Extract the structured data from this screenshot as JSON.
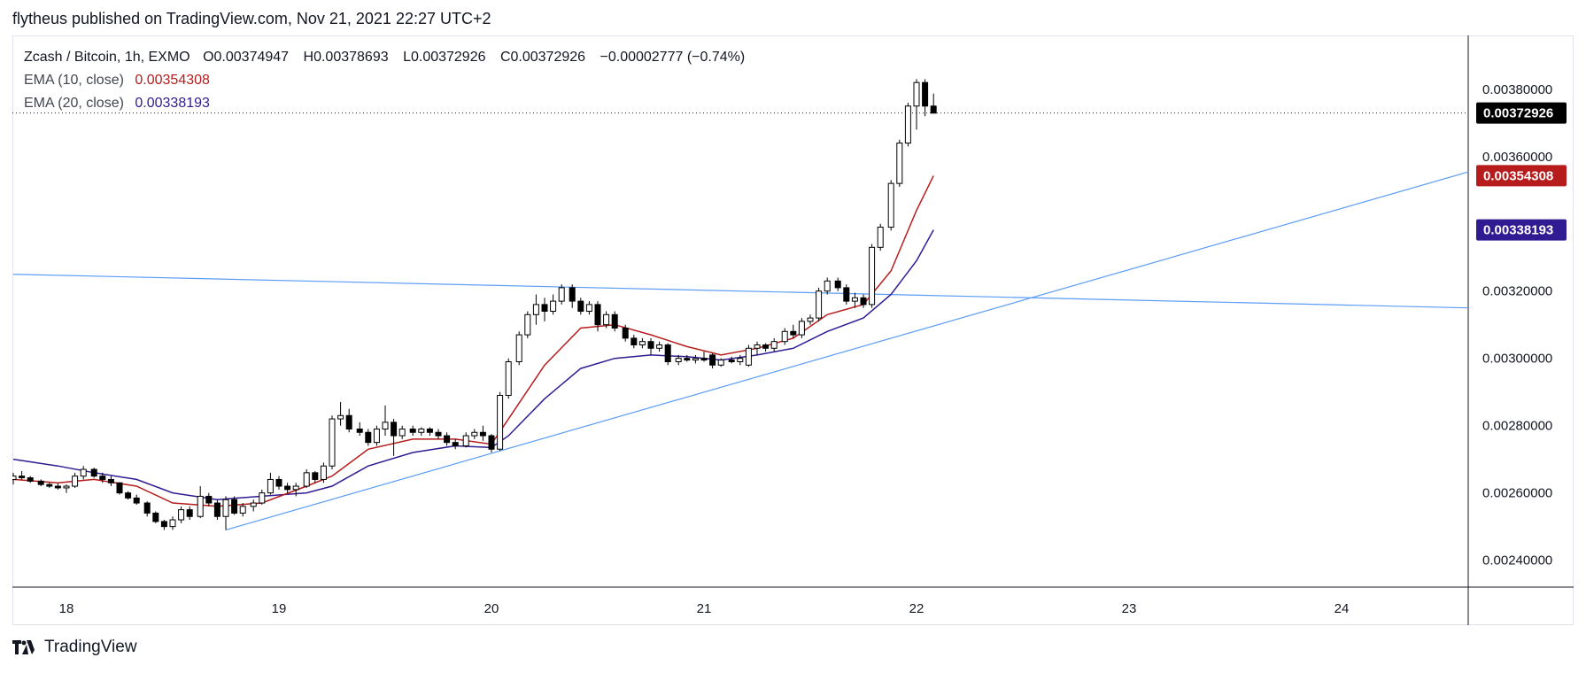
{
  "header": {
    "publish_line": "flytheus published on TradingView.com, Nov 21, 2021 22:27 UTC+2"
  },
  "legend": {
    "title": "Zcash / Bitcoin, 1h, EXMO",
    "ohlc": [
      {
        "key": "O",
        "value": "0.00374947"
      },
      {
        "key": "H",
        "value": "0.00378693"
      },
      {
        "key": "L",
        "value": "0.00372926"
      },
      {
        "key": "C",
        "value": "0.00372926"
      }
    ],
    "change": "−0.00002777 (−0.74%)",
    "indicators": [
      {
        "name": "EMA (10, close)",
        "value": "0.00354308",
        "color": "#b71c1c"
      },
      {
        "name": "EMA (20, close)",
        "value": "0.00338193",
        "color": "#311b92"
      }
    ]
  },
  "footer": {
    "logo_text": "TradingView"
  },
  "colors": {
    "up_candle_fill": "#ffffff",
    "down_candle_fill": "#000000",
    "candle_stroke": "#000000",
    "ema10": "#b71c1c",
    "ema20": "#311b92",
    "trendline": "#5b9cf6",
    "last_price_tag": "#000000"
  },
  "chart_data": {
    "type": "candlestick",
    "instrument": "Zcash / Bitcoin",
    "interval": "1h",
    "exchange": "EXMO",
    "x_ticks": [
      {
        "label": "18",
        "day": 18
      },
      {
        "label": "19",
        "day": 19
      },
      {
        "label": "20",
        "day": 20
      },
      {
        "label": "21",
        "day": 21
      },
      {
        "label": "22",
        "day": 22
      },
      {
        "label": "23",
        "day": 23
      },
      {
        "label": "24",
        "day": 24
      }
    ],
    "y_ticks": [
      "0.00240000",
      "0.00260000",
      "0.00280000",
      "0.00300000",
      "0.00320000",
      "0.00360000",
      "0.00380000"
    ],
    "ylim": [
      0.00232,
      0.00396
    ],
    "xlim": [
      17.75,
      24.6
    ],
    "last_price": {
      "label": "0.00372926",
      "value": 0.00372926
    },
    "ema_tags": [
      {
        "label": "0.00354308",
        "value": 0.00354308,
        "series": "EMA (10, close)"
      },
      {
        "label": "0.00338193",
        "value": 0.00338193,
        "series": "EMA (20, close)"
      }
    ],
    "candles": [
      {
        "t": 17.75,
        "o": 0.00264,
        "h": 0.00266,
        "l": 0.002625,
        "c": 0.00265
      },
      {
        "t": 17.79,
        "o": 0.00265,
        "h": 0.002665,
        "l": 0.00264,
        "c": 0.002645
      },
      {
        "t": 17.83,
        "o": 0.002645,
        "h": 0.00265,
        "l": 0.00263,
        "c": 0.002635
      },
      {
        "t": 17.88,
        "o": 0.002635,
        "h": 0.00264,
        "l": 0.00262,
        "c": 0.002625
      },
      {
        "t": 17.92,
        "o": 0.002625,
        "h": 0.00263,
        "l": 0.002615,
        "c": 0.00262
      },
      {
        "t": 17.96,
        "o": 0.00262,
        "h": 0.002628,
        "l": 0.00261,
        "c": 0.002615
      },
      {
        "t": 18.0,
        "o": 0.002615,
        "h": 0.002625,
        "l": 0.0026,
        "c": 0.00262
      },
      {
        "t": 18.04,
        "o": 0.00262,
        "h": 0.00266,
        "l": 0.002615,
        "c": 0.00265
      },
      {
        "t": 18.08,
        "o": 0.00265,
        "h": 0.00268,
        "l": 0.00264,
        "c": 0.00267
      },
      {
        "t": 18.13,
        "o": 0.00267,
        "h": 0.002675,
        "l": 0.002645,
        "c": 0.00265
      },
      {
        "t": 18.17,
        "o": 0.00265,
        "h": 0.00266,
        "l": 0.00263,
        "c": 0.00264
      },
      {
        "t": 18.21,
        "o": 0.00264,
        "h": 0.00265,
        "l": 0.00262,
        "c": 0.00263
      },
      {
        "t": 18.25,
        "o": 0.00263,
        "h": 0.002632,
        "l": 0.002595,
        "c": 0.0026
      },
      {
        "t": 18.29,
        "o": 0.0026,
        "h": 0.002605,
        "l": 0.00258,
        "c": 0.002585
      },
      {
        "t": 18.33,
        "o": 0.002585,
        "h": 0.002595,
        "l": 0.002565,
        "c": 0.00257
      },
      {
        "t": 18.38,
        "o": 0.00257,
        "h": 0.002575,
        "l": 0.00253,
        "c": 0.00254
      },
      {
        "t": 18.42,
        "o": 0.00254,
        "h": 0.002545,
        "l": 0.00251,
        "c": 0.002515
      },
      {
        "t": 18.46,
        "o": 0.002515,
        "h": 0.00252,
        "l": 0.00249,
        "c": 0.0025
      },
      {
        "t": 18.5,
        "o": 0.0025,
        "h": 0.00253,
        "l": 0.00249,
        "c": 0.00252
      },
      {
        "t": 18.54,
        "o": 0.00252,
        "h": 0.00256,
        "l": 0.00251,
        "c": 0.00255
      },
      {
        "t": 18.58,
        "o": 0.00255,
        "h": 0.00256,
        "l": 0.00252,
        "c": 0.00253
      },
      {
        "t": 18.63,
        "o": 0.00253,
        "h": 0.00262,
        "l": 0.002525,
        "c": 0.00259
      },
      {
        "t": 18.67,
        "o": 0.00259,
        "h": 0.0026,
        "l": 0.00256,
        "c": 0.00257
      },
      {
        "t": 18.71,
        "o": 0.00257,
        "h": 0.00258,
        "l": 0.00252,
        "c": 0.00253
      },
      {
        "t": 18.75,
        "o": 0.00253,
        "h": 0.00259,
        "l": 0.00249,
        "c": 0.00258
      },
      {
        "t": 18.79,
        "o": 0.00258,
        "h": 0.00259,
        "l": 0.002535,
        "c": 0.00254
      },
      {
        "t": 18.83,
        "o": 0.00254,
        "h": 0.00257,
        "l": 0.00253,
        "c": 0.00256
      },
      {
        "t": 18.88,
        "o": 0.00256,
        "h": 0.00258,
        "l": 0.002545,
        "c": 0.00257
      },
      {
        "t": 18.92,
        "o": 0.00257,
        "h": 0.00261,
        "l": 0.002565,
        "c": 0.0026
      },
      {
        "t": 18.96,
        "o": 0.0026,
        "h": 0.00266,
        "l": 0.002595,
        "c": 0.00264
      },
      {
        "t": 19.0,
        "o": 0.00264,
        "h": 0.00265,
        "l": 0.00261,
        "c": 0.00262
      },
      {
        "t": 19.04,
        "o": 0.00262,
        "h": 0.00263,
        "l": 0.0026,
        "c": 0.00261
      },
      {
        "t": 19.08,
        "o": 0.00261,
        "h": 0.00263,
        "l": 0.00259,
        "c": 0.00262
      },
      {
        "t": 19.13,
        "o": 0.00262,
        "h": 0.00267,
        "l": 0.002615,
        "c": 0.00266
      },
      {
        "t": 19.17,
        "o": 0.00266,
        "h": 0.002665,
        "l": 0.00263,
        "c": 0.00264
      },
      {
        "t": 19.21,
        "o": 0.00264,
        "h": 0.00269,
        "l": 0.00263,
        "c": 0.00268
      },
      {
        "t": 19.25,
        "o": 0.00268,
        "h": 0.00283,
        "l": 0.00267,
        "c": 0.00282
      },
      {
        "t": 19.29,
        "o": 0.00282,
        "h": 0.00287,
        "l": 0.0028,
        "c": 0.00283
      },
      {
        "t": 19.33,
        "o": 0.00283,
        "h": 0.00285,
        "l": 0.00278,
        "c": 0.00279
      },
      {
        "t": 19.38,
        "o": 0.00279,
        "h": 0.00281,
        "l": 0.00277,
        "c": 0.00278
      },
      {
        "t": 19.42,
        "o": 0.00278,
        "h": 0.00279,
        "l": 0.00274,
        "c": 0.00275
      },
      {
        "t": 19.46,
        "o": 0.00275,
        "h": 0.0028,
        "l": 0.00274,
        "c": 0.00279
      },
      {
        "t": 19.5,
        "o": 0.00279,
        "h": 0.00286,
        "l": 0.00277,
        "c": 0.00281
      },
      {
        "t": 19.54,
        "o": 0.00281,
        "h": 0.00282,
        "l": 0.00271,
        "c": 0.00277
      },
      {
        "t": 19.58,
        "o": 0.00277,
        "h": 0.0028,
        "l": 0.00276,
        "c": 0.00279
      },
      {
        "t": 19.63,
        "o": 0.00279,
        "h": 0.0028,
        "l": 0.00277,
        "c": 0.00278
      },
      {
        "t": 19.67,
        "o": 0.00278,
        "h": 0.002795,
        "l": 0.00277,
        "c": 0.00279
      },
      {
        "t": 19.71,
        "o": 0.00279,
        "h": 0.002795,
        "l": 0.00277,
        "c": 0.00278
      },
      {
        "t": 19.75,
        "o": 0.00278,
        "h": 0.00279,
        "l": 0.00276,
        "c": 0.00277
      },
      {
        "t": 19.79,
        "o": 0.00277,
        "h": 0.00278,
        "l": 0.00274,
        "c": 0.00275
      },
      {
        "t": 19.83,
        "o": 0.00275,
        "h": 0.00276,
        "l": 0.00273,
        "c": 0.00274
      },
      {
        "t": 19.88,
        "o": 0.00274,
        "h": 0.00278,
        "l": 0.002735,
        "c": 0.00277
      },
      {
        "t": 19.92,
        "o": 0.00277,
        "h": 0.00279,
        "l": 0.00276,
        "c": 0.00278
      },
      {
        "t": 19.96,
        "o": 0.00278,
        "h": 0.0028,
        "l": 0.002755,
        "c": 0.00277
      },
      {
        "t": 20.0,
        "o": 0.00277,
        "h": 0.002775,
        "l": 0.00272,
        "c": 0.00273
      },
      {
        "t": 20.04,
        "o": 0.00273,
        "h": 0.0029,
        "l": 0.002725,
        "c": 0.00289
      },
      {
        "t": 20.08,
        "o": 0.00289,
        "h": 0.003,
        "l": 0.00288,
        "c": 0.00299
      },
      {
        "t": 20.13,
        "o": 0.00299,
        "h": 0.00308,
        "l": 0.00298,
        "c": 0.00307
      },
      {
        "t": 20.17,
        "o": 0.00307,
        "h": 0.00314,
        "l": 0.00306,
        "c": 0.00313
      },
      {
        "t": 20.21,
        "o": 0.00313,
        "h": 0.00319,
        "l": 0.0031,
        "c": 0.00316
      },
      {
        "t": 20.25,
        "o": 0.00316,
        "h": 0.00318,
        "l": 0.00311,
        "c": 0.00314
      },
      {
        "t": 20.29,
        "o": 0.00314,
        "h": 0.00319,
        "l": 0.00313,
        "c": 0.00317
      },
      {
        "t": 20.33,
        "o": 0.00317,
        "h": 0.00322,
        "l": 0.00316,
        "c": 0.00321
      },
      {
        "t": 20.38,
        "o": 0.00321,
        "h": 0.00322,
        "l": 0.00315,
        "c": 0.00317
      },
      {
        "t": 20.42,
        "o": 0.00317,
        "h": 0.00318,
        "l": 0.00313,
        "c": 0.00314
      },
      {
        "t": 20.46,
        "o": 0.00314,
        "h": 0.00317,
        "l": 0.00313,
        "c": 0.00316
      },
      {
        "t": 20.5,
        "o": 0.00316,
        "h": 0.00317,
        "l": 0.00308,
        "c": 0.0031
      },
      {
        "t": 20.54,
        "o": 0.0031,
        "h": 0.00314,
        "l": 0.00309,
        "c": 0.00313
      },
      {
        "t": 20.58,
        "o": 0.00313,
        "h": 0.00314,
        "l": 0.00308,
        "c": 0.00309
      },
      {
        "t": 20.63,
        "o": 0.00309,
        "h": 0.0031,
        "l": 0.00305,
        "c": 0.00306
      },
      {
        "t": 20.67,
        "o": 0.00306,
        "h": 0.00307,
        "l": 0.00303,
        "c": 0.00304
      },
      {
        "t": 20.71,
        "o": 0.00304,
        "h": 0.00306,
        "l": 0.00303,
        "c": 0.00305
      },
      {
        "t": 20.75,
        "o": 0.00305,
        "h": 0.00306,
        "l": 0.00301,
        "c": 0.00303
      },
      {
        "t": 20.79,
        "o": 0.00303,
        "h": 0.00305,
        "l": 0.00302,
        "c": 0.00304
      },
      {
        "t": 20.83,
        "o": 0.00304,
        "h": 0.003045,
        "l": 0.00298,
        "c": 0.00299
      },
      {
        "t": 20.88,
        "o": 0.00299,
        "h": 0.00301,
        "l": 0.00298,
        "c": 0.003
      },
      {
        "t": 20.92,
        "o": 0.003,
        "h": 0.00301,
        "l": 0.00299,
        "c": 0.002995
      },
      {
        "t": 20.96,
        "o": 0.002995,
        "h": 0.00301,
        "l": 0.002985,
        "c": 0.003
      },
      {
        "t": 21.0,
        "o": 0.003,
        "h": 0.00302,
        "l": 0.00299,
        "c": 0.002995
      },
      {
        "t": 21.04,
        "o": 0.00301,
        "h": 0.003015,
        "l": 0.00297,
        "c": 0.00298
      },
      {
        "t": 21.08,
        "o": 0.00298,
        "h": 0.003,
        "l": 0.002975,
        "c": 0.002995
      },
      {
        "t": 21.13,
        "o": 0.002995,
        "h": 0.003005,
        "l": 0.002985,
        "c": 0.00299
      },
      {
        "t": 21.17,
        "o": 0.00299,
        "h": 0.00301,
        "l": 0.00298,
        "c": 0.003
      },
      {
        "t": 21.21,
        "o": 0.00298,
        "h": 0.00304,
        "l": 0.002975,
        "c": 0.00303
      },
      {
        "t": 21.25,
        "o": 0.00303,
        "h": 0.00305,
        "l": 0.00301,
        "c": 0.00304
      },
      {
        "t": 21.29,
        "o": 0.00304,
        "h": 0.003045,
        "l": 0.00302,
        "c": 0.00303
      },
      {
        "t": 21.33,
        "o": 0.00303,
        "h": 0.00306,
        "l": 0.00302,
        "c": 0.00305
      },
      {
        "t": 21.38,
        "o": 0.00305,
        "h": 0.00309,
        "l": 0.00304,
        "c": 0.00308
      },
      {
        "t": 21.42,
        "o": 0.00308,
        "h": 0.0031,
        "l": 0.00306,
        "c": 0.00307
      },
      {
        "t": 21.46,
        "o": 0.00307,
        "h": 0.00312,
        "l": 0.00306,
        "c": 0.00311
      },
      {
        "t": 21.5,
        "o": 0.00311,
        "h": 0.00313,
        "l": 0.0031,
        "c": 0.00312
      },
      {
        "t": 21.54,
        "o": 0.00312,
        "h": 0.00321,
        "l": 0.00311,
        "c": 0.0032
      },
      {
        "t": 21.58,
        "o": 0.0032,
        "h": 0.00324,
        "l": 0.00319,
        "c": 0.00323
      },
      {
        "t": 21.63,
        "o": 0.00323,
        "h": 0.00324,
        "l": 0.0032,
        "c": 0.00321
      },
      {
        "t": 21.67,
        "o": 0.00321,
        "h": 0.00322,
        "l": 0.00316,
        "c": 0.00317
      },
      {
        "t": 21.71,
        "o": 0.00317,
        "h": 0.003195,
        "l": 0.00315,
        "c": 0.00318
      },
      {
        "t": 21.75,
        "o": 0.00318,
        "h": 0.00319,
        "l": 0.00315,
        "c": 0.00316
      },
      {
        "t": 21.79,
        "o": 0.00316,
        "h": 0.00334,
        "l": 0.00315,
        "c": 0.00333
      },
      {
        "t": 21.83,
        "o": 0.00333,
        "h": 0.0034,
        "l": 0.00332,
        "c": 0.00339
      },
      {
        "t": 21.88,
        "o": 0.00339,
        "h": 0.00353,
        "l": 0.00338,
        "c": 0.00352
      },
      {
        "t": 21.92,
        "o": 0.00352,
        "h": 0.00365,
        "l": 0.00351,
        "c": 0.00364
      },
      {
        "t": 21.96,
        "o": 0.00364,
        "h": 0.00376,
        "l": 0.00363,
        "c": 0.00375
      },
      {
        "t": 22.0,
        "o": 0.00375,
        "h": 0.00383,
        "l": 0.00368,
        "c": 0.00382
      },
      {
        "t": 22.04,
        "o": 0.00382,
        "h": 0.00383,
        "l": 0.00372,
        "c": 0.00375
      },
      {
        "t": 22.08,
        "o": 0.00375,
        "h": 0.003787,
        "l": 0.003729,
        "c": 0.003729
      }
    ],
    "ema10": [
      [
        17.75,
        0.00264
      ],
      [
        17.96,
        0.00263
      ],
      [
        18.13,
        0.00264
      ],
      [
        18.33,
        0.00262
      ],
      [
        18.5,
        0.00257
      ],
      [
        18.71,
        0.00256
      ],
      [
        18.92,
        0.00257
      ],
      [
        19.13,
        0.00262
      ],
      [
        19.25,
        0.00265
      ],
      [
        19.42,
        0.00273
      ],
      [
        19.63,
        0.00276
      ],
      [
        19.83,
        0.00276
      ],
      [
        20.0,
        0.002745
      ],
      [
        20.08,
        0.00282
      ],
      [
        20.25,
        0.00298
      ],
      [
        20.42,
        0.00309
      ],
      [
        20.58,
        0.0031
      ],
      [
        20.75,
        0.00307
      ],
      [
        20.92,
        0.003035
      ],
      [
        21.08,
        0.00301
      ],
      [
        21.25,
        0.00303
      ],
      [
        21.42,
        0.00306
      ],
      [
        21.58,
        0.00313
      ],
      [
        21.75,
        0.00316
      ],
      [
        21.88,
        0.00326
      ],
      [
        22.0,
        0.00344
      ],
      [
        22.08,
        0.003543
      ]
    ],
    "ema20": [
      [
        17.75,
        0.0027
      ],
      [
        17.96,
        0.00268
      ],
      [
        18.13,
        0.00266
      ],
      [
        18.33,
        0.00264
      ],
      [
        18.5,
        0.0026
      ],
      [
        18.71,
        0.00258
      ],
      [
        18.92,
        0.00259
      ],
      [
        19.13,
        0.0026
      ],
      [
        19.25,
        0.00262
      ],
      [
        19.42,
        0.00268
      ],
      [
        19.63,
        0.00272
      ],
      [
        19.83,
        0.00274
      ],
      [
        20.0,
        0.002735
      ],
      [
        20.08,
        0.00277
      ],
      [
        20.25,
        0.00288
      ],
      [
        20.42,
        0.00297
      ],
      [
        20.58,
        0.003
      ],
      [
        20.75,
        0.00301
      ],
      [
        20.92,
        0.003005
      ],
      [
        21.08,
        0.002995
      ],
      [
        21.25,
        0.00301
      ],
      [
        21.42,
        0.00303
      ],
      [
        21.58,
        0.00308
      ],
      [
        21.75,
        0.00312
      ],
      [
        21.88,
        0.00319
      ],
      [
        22.0,
        0.00329
      ],
      [
        22.08,
        0.003382
      ]
    ],
    "trendlines": [
      {
        "from": [
          17.75,
          0.00325
        ],
        "to": [
          24.6,
          0.00315
        ]
      },
      {
        "from": [
          18.75,
          0.00249
        ],
        "to": [
          24.6,
          0.003555
        ]
      }
    ],
    "grid": false
  }
}
